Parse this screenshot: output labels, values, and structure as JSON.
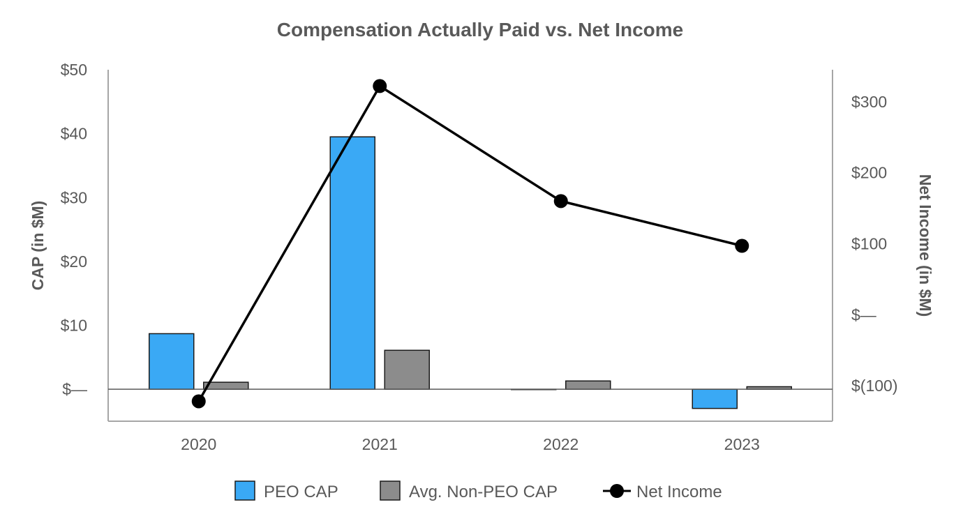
{
  "chart_data": {
    "type": "bar",
    "title": "Compensation Actually Paid vs. Net Income",
    "categories": [
      "2020",
      "2021",
      "2022",
      "2023"
    ],
    "ylabel": "CAP (in $M)",
    "y2label": "Net Income (in $M)",
    "ylim": [
      -5,
      50
    ],
    "y2lim": [
      -150,
      345
    ],
    "yticks": [
      0,
      10,
      20,
      30,
      40,
      50
    ],
    "ytick_labels": [
      "$—",
      "$10",
      "$20",
      "$30",
      "$40",
      "$50"
    ],
    "y2ticks": [
      -100,
      0,
      100,
      200,
      300
    ],
    "y2tick_labels": [
      "$(100)",
      "$—",
      "$100",
      "$200",
      "$300"
    ],
    "grid": false,
    "legend_position": "bottom-center",
    "series": [
      {
        "name": "PEO CAP",
        "type": "bar",
        "axis": "left",
        "color": "#3aa9f5",
        "values": [
          8.7,
          39.5,
          0.0,
          -3.0
        ]
      },
      {
        "name": "Avg. Non-PEO CAP",
        "type": "bar",
        "axis": "left",
        "color": "#8c8c8c",
        "values": [
          1.1,
          6.1,
          1.3,
          0.4
        ]
      },
      {
        "name": "Net Income",
        "type": "line",
        "axis": "right",
        "color": "#000000",
        "values": [
          -122,
          322,
          160,
          97
        ]
      }
    ]
  }
}
